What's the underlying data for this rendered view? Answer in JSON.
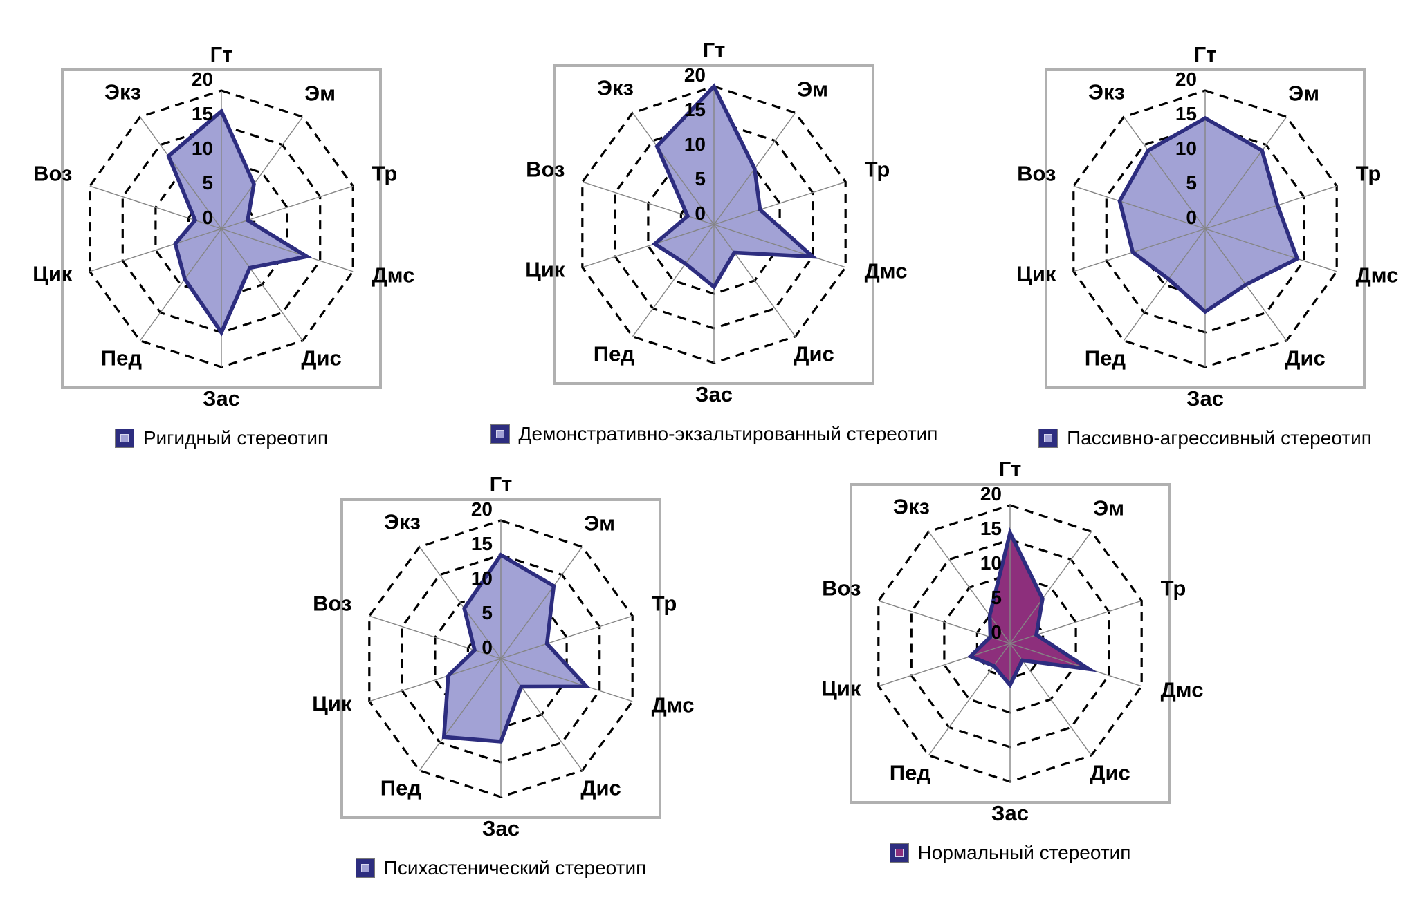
{
  "colors": {
    "fill_light": "#a2a2d5",
    "fill_dark": "#8d2f7c",
    "stroke": "#2d2d7f",
    "grid": "#000000",
    "spoke": "#858585",
    "box_border": "#b0b0b0",
    "background": "#ffffff"
  },
  "chart_data": [
    {
      "type": "radar",
      "title": "Ригидный стереотип",
      "categories": [
        "Гт",
        "Эм",
        "Тр",
        "Дмс",
        "Дис",
        "Зас",
        "Пед",
        "Цик",
        "Воз",
        "Экз"
      ],
      "values": [
        17,
        8,
        4,
        13,
        7,
        15,
        9,
        7,
        4,
        13
      ],
      "ticks": [
        0,
        5,
        10,
        15,
        20
      ],
      "rlim": [
        0,
        20
      ],
      "fill": "fill_light",
      "legend_position": "bottom",
      "grid": "dashed"
    },
    {
      "type": "radar",
      "title": "Демонстративно-экзальтированный стереотип",
      "categories": [
        "Гт",
        "Эм",
        "Тр",
        "Дмс",
        "Дис",
        "Зас",
        "Пед",
        "Цик",
        "Воз",
        "Экз"
      ],
      "values": [
        20,
        10,
        7,
        15,
        5,
        9,
        7,
        9,
        4,
        14
      ],
      "ticks": [
        0,
        5,
        10,
        15,
        20
      ],
      "rlim": [
        0,
        20
      ],
      "fill": "fill_light",
      "legend_position": "bottom",
      "grid": "dashed"
    },
    {
      "type": "radar",
      "title": "Пассивно-агрессивный стереотип",
      "categories": [
        "Гт",
        "Эм",
        "Тр",
        "Дмс",
        "Дис",
        "Зас",
        "Пед",
        "Цик",
        "Воз",
        "Экз"
      ],
      "values": [
        16,
        14,
        11,
        14,
        10,
        12,
        9,
        11,
        13,
        14
      ],
      "ticks": [
        0,
        5,
        10,
        15,
        20
      ],
      "rlim": [
        0,
        20
      ],
      "fill": "fill_light",
      "legend_position": "bottom",
      "grid": "dashed"
    },
    {
      "type": "radar",
      "title": "Психастенический стереотип",
      "categories": [
        "Гт",
        "Эм",
        "Тр",
        "Дмс",
        "Дис",
        "Зас",
        "Пед",
        "Цик",
        "Воз",
        "Экз"
      ],
      "values": [
        15,
        13,
        7,
        13,
        5,
        12,
        14,
        8,
        4,
        9
      ],
      "ticks": [
        0,
        5,
        10,
        15,
        20
      ],
      "rlim": [
        0,
        20
      ],
      "fill": "fill_light",
      "legend_position": "bottom",
      "grid": "dashed"
    },
    {
      "type": "radar",
      "title": "Нормальный стереотип",
      "categories": [
        "Гт",
        "Эм",
        "Тр",
        "Дмс",
        "Дис",
        "Зас",
        "Пед",
        "Цик",
        "Воз",
        "Экз"
      ],
      "values": [
        16,
        8,
        4,
        12,
        3,
        6,
        4,
        6,
        3,
        5
      ],
      "ticks": [
        0,
        5,
        10,
        15,
        20
      ],
      "rlim": [
        0,
        20
      ],
      "fill": "fill_dark",
      "legend_position": "bottom",
      "grid": "dashed"
    }
  ]
}
